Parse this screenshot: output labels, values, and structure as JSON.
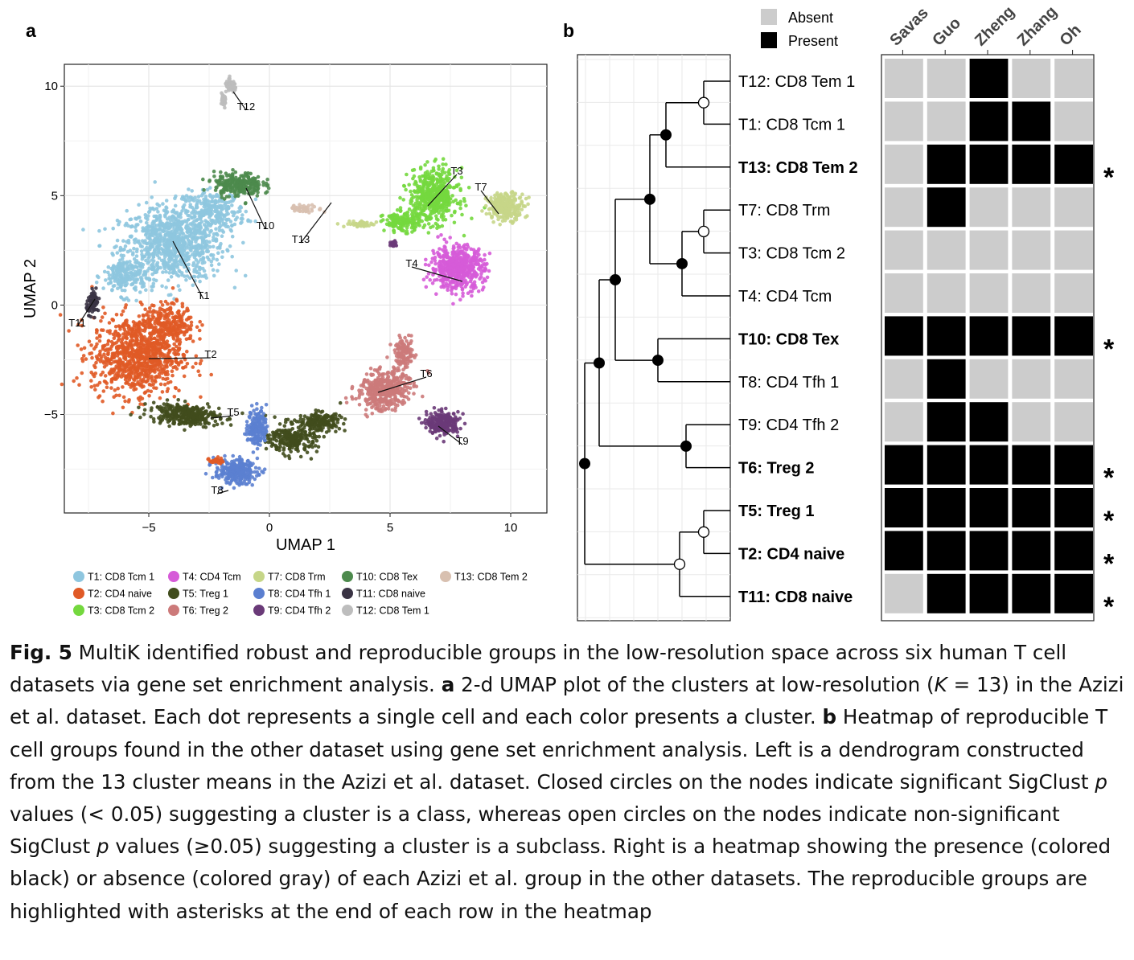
{
  "panel_a": {
    "label": "a",
    "xlabel": "UMAP 1",
    "ylabel": "UMAP 2",
    "xticks": [
      "−5",
      "0",
      "5",
      "10"
    ],
    "yticks": [
      "−5",
      "0",
      "5",
      "10"
    ],
    "clusters": [
      {
        "id": "T1",
        "legend": "T1: CD8 Tcm 1",
        "color": "#8ec6df"
      },
      {
        "id": "T2",
        "legend": "T2: CD4 naive",
        "color": "#e05a26"
      },
      {
        "id": "T3",
        "legend": "T3: CD8 Tcm 2",
        "color": "#74d83e"
      },
      {
        "id": "T4",
        "legend": "T4: CD4 Tcm",
        "color": "#d65bd8"
      },
      {
        "id": "T5",
        "legend": "T5: Treg 1",
        "color": "#414d1d"
      },
      {
        "id": "T6",
        "legend": "T6: Treg 2",
        "color": "#cc7a7a"
      },
      {
        "id": "T7",
        "legend": "T7: CD8 Trm",
        "color": "#c6d688"
      },
      {
        "id": "T8",
        "legend": "T8: CD4 Tfh 1",
        "color": "#5b7fd0"
      },
      {
        "id": "T9",
        "legend": "T9: CD4 Tfh 2",
        "color": "#6a3a78"
      },
      {
        "id": "T10",
        "legend": "T10: CD8 Tex",
        "color": "#4d8a4d"
      },
      {
        "id": "T11",
        "legend": "T11: CD8 naive",
        "color": "#3a3344"
      },
      {
        "id": "T12",
        "legend": "T12: CD8 Tem 1",
        "color": "#bdbdbd"
      },
      {
        "id": "T13",
        "legend": "T13: CD8 Tem 2",
        "color": "#d8c0b0"
      }
    ]
  },
  "panel_b": {
    "label": "b",
    "legend": {
      "absent": "Absent",
      "present": "Present",
      "absent_color": "#cccccc",
      "present_color": "#000000"
    },
    "columns": [
      "Savas",
      "Guo",
      "Zheng",
      "Zhang",
      "Oh"
    ],
    "rows": [
      {
        "label": "T12: CD8 Tem 1",
        "bold": false,
        "star": false
      },
      {
        "label": "T1: CD8 Tcm 1",
        "bold": false,
        "star": false
      },
      {
        "label": "T13: CD8 Tem 2",
        "bold": true,
        "star": true
      },
      {
        "label": "T7: CD8 Trm",
        "bold": false,
        "star": false
      },
      {
        "label": "T3: CD8 Tcm 2",
        "bold": false,
        "star": false
      },
      {
        "label": "T4: CD4 Tcm",
        "bold": false,
        "star": false
      },
      {
        "label": "T10: CD8 Tex",
        "bold": true,
        "star": true
      },
      {
        "label": "T8: CD4 Tfh 1",
        "bold": false,
        "star": false
      },
      {
        "label": "T9: CD4 Tfh 2",
        "bold": false,
        "star": false
      },
      {
        "label": "T6: Treg 2",
        "bold": true,
        "star": true
      },
      {
        "label": "T5: Treg 1",
        "bold": true,
        "star": true
      },
      {
        "label": "T2: CD4 naive",
        "bold": true,
        "star": true
      },
      {
        "label": "T11: CD8 naive",
        "bold": true,
        "star": true
      }
    ],
    "star_symbol": "*"
  },
  "chart_data": [
    {
      "type": "scatter",
      "title": "",
      "xlabel": "UMAP 1",
      "ylabel": "UMAP 2",
      "xlim": [
        -8.5,
        11.5
      ],
      "ylim": [
        -9.5,
        11
      ],
      "grid": true,
      "legend_position": "bottom",
      "series": [
        {
          "name": "T1: CD8 Tcm 1",
          "centroid": [
            -4.2,
            2.7
          ]
        },
        {
          "name": "T2: CD4 naive",
          "centroid": [
            -5.5,
            -2.5
          ]
        },
        {
          "name": "T3: CD8 Tcm 2",
          "centroid": [
            7.1,
            4.9
          ]
        },
        {
          "name": "T4: CD4 Tcm",
          "centroid": [
            7.8,
            1.6
          ]
        },
        {
          "name": "T5: Treg 1",
          "centroid": [
            -3.5,
            -5.2
          ]
        },
        {
          "name": "T6: Treg 2",
          "centroid": [
            4.8,
            -3.8
          ]
        },
        {
          "name": "T7: CD8 Trm",
          "centroid": [
            9.8,
            4.5
          ]
        },
        {
          "name": "T8: CD4 Tfh 1",
          "centroid": [
            -1.2,
            -7.2
          ]
        },
        {
          "name": "T9: CD4 Tfh 2",
          "centroid": [
            7.3,
            -5.5
          ]
        },
        {
          "name": "T10: CD8 Tex",
          "centroid": [
            -1.3,
            5.3
          ]
        },
        {
          "name": "T11: CD8 naive",
          "centroid": [
            -7.2,
            0.2
          ]
        },
        {
          "name": "T12: CD8 Tem 1",
          "centroid": [
            -1.6,
            9.9
          ]
        },
        {
          "name": "T13: CD8 Tem 2",
          "centroid": [
            2.1,
            4.2
          ]
        }
      ]
    },
    {
      "type": "heatmap",
      "title": "",
      "columns": [
        "Savas",
        "Guo",
        "Zheng",
        "Zhang",
        "Oh"
      ],
      "rows": [
        "T12: CD8 Tem 1",
        "T1: CD8 Tcm 1",
        "T13: CD8 Tem 2",
        "T7: CD8 Trm",
        "T3: CD8 Tcm 2",
        "T4: CD4 Tcm",
        "T10: CD8 Tex",
        "T8: CD4 Tfh 1",
        "T9: CD4 Tfh 2",
        "T6: Treg 2",
        "T5: Treg 1",
        "T2: CD4 naive",
        "T11: CD8 naive"
      ],
      "values": [
        [
          0,
          0,
          1,
          0,
          0
        ],
        [
          0,
          0,
          1,
          1,
          0
        ],
        [
          0,
          1,
          1,
          1,
          1
        ],
        [
          0,
          1,
          0,
          0,
          0
        ],
        [
          0,
          0,
          0,
          0,
          0
        ],
        [
          0,
          0,
          0,
          0,
          0
        ],
        [
          1,
          1,
          1,
          1,
          1
        ],
        [
          0,
          1,
          0,
          0,
          0
        ],
        [
          0,
          1,
          1,
          0,
          0
        ],
        [
          1,
          1,
          1,
          1,
          1
        ],
        [
          1,
          1,
          1,
          1,
          1
        ],
        [
          1,
          1,
          1,
          1,
          1
        ],
        [
          0,
          1,
          1,
          1,
          1
        ]
      ],
      "legend": [
        "Absent",
        "Present"
      ],
      "legend_position": "top-left"
    }
  ],
  "caption": {
    "fig_label": "Fig. 5",
    "text1": " MultiK identified robust and reproducible groups in the low-resolution space across six human T cell datasets via gene set enrichment analysis. ",
    "a_label": "a",
    "text2": " 2-d UMAP plot of the clusters at low-resolution (",
    "k_var": "K",
    "text3": " = 13) in the Azizi et al. dataset. Each dot represents a single cell and each color presents a cluster. ",
    "b_label": "b",
    "text4": " Heatmap of reproducible T cell groups found in the other dataset using gene set enrichment analysis. Left is a dendrogram constructed from the 13 cluster means in the Azizi et al. dataset. Closed circles on the nodes indicate significant SigClust ",
    "p1": "p",
    "text5": " values (< 0.05) suggesting a cluster is a class, whereas open circles on the nodes indicate non-significant SigClust ",
    "p2": "p",
    "text6": " values (≥0.05) suggesting a cluster is a subclass. Right is a heatmap showing the presence (colored black) or absence (colored gray) of each Azizi et al. group in the other datasets. The reproducible groups are highlighted with asterisks at the end of each row in the heatmap"
  }
}
